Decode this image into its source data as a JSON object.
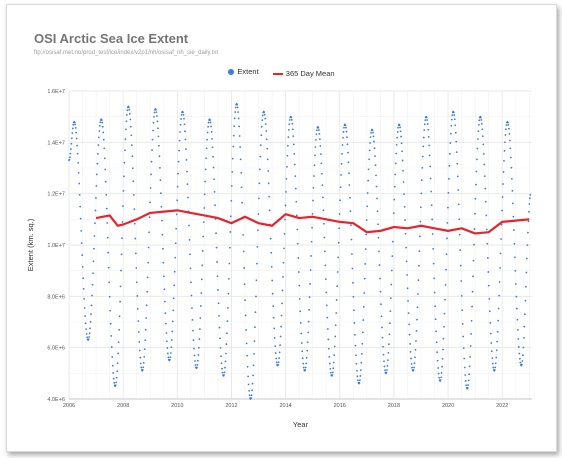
{
  "chart_data": {
    "type": "line",
    "title": "OSI Arctic Sea Ice Extent",
    "subtitle": "ftp://osisaf.met.no/prod_test/ice/index/v2p1/nh/osisaf_nh_sie_daily.txt",
    "xlabel": "Year",
    "ylabel": "Extent (km. sq.)",
    "xlim": [
      2006,
      2023.1
    ],
    "ylim": [
      4000000,
      16000000
    ],
    "x_ticks": [
      "2006",
      "2008",
      "2010",
      "2012",
      "2014",
      "2016",
      "2018",
      "2020",
      "2022"
    ],
    "y_ticks": [
      "4.0E+6",
      "6.0E+6",
      "8.0E+6",
      "1.0E+7",
      "1.2E+7",
      "1.4E+7",
      "1.6E+7"
    ],
    "grid": true,
    "legend_position": "top",
    "series": [
      {
        "name": "Extent",
        "style": "dots",
        "color": "#3b7ddd",
        "years": [
          2006,
          2007,
          2008,
          2009,
          2010,
          2011,
          2012,
          2013,
          2014,
          2015,
          2016,
          2017,
          2018,
          2019,
          2020,
          2021,
          2022
        ],
        "annual_max": [
          14800000,
          14900000,
          15400000,
          15300000,
          15200000,
          14900000,
          15500000,
          15200000,
          15000000,
          14600000,
          14700000,
          14500000,
          14700000,
          15000000,
          15200000,
          15000000,
          14800000
        ],
        "annual_min": [
          6300000,
          4500000,
          5100000,
          5500000,
          5200000,
          4900000,
          4000000,
          5300000,
          5100000,
          4900000,
          4600000,
          5000000,
          5100000,
          4700000,
          4400000,
          5100000,
          5300000
        ]
      },
      {
        "name": "365 Day Mean",
        "style": "line",
        "color": "#e8232b",
        "x": [
          2007.0,
          2007.5,
          2007.8,
          2008.0,
          2008.5,
          2009.0,
          2009.5,
          2010.0,
          2010.5,
          2011.0,
          2011.5,
          2012.0,
          2012.5,
          2013.0,
          2013.5,
          2014.0,
          2014.5,
          2015.0,
          2015.5,
          2016.0,
          2016.5,
          2017.0,
          2017.5,
          2018.0,
          2018.5,
          2019.0,
          2019.5,
          2020.0,
          2020.5,
          2021.0,
          2021.5,
          2022.0,
          2022.5,
          2023.0
        ],
        "y": [
          11050000,
          11150000,
          10750000,
          10800000,
          11000000,
          11250000,
          11300000,
          11350000,
          11250000,
          11150000,
          11050000,
          10850000,
          11100000,
          10850000,
          10750000,
          11200000,
          11050000,
          11100000,
          11000000,
          10900000,
          10850000,
          10500000,
          10550000,
          10700000,
          10650000,
          10750000,
          10650000,
          10550000,
          10650000,
          10450000,
          10500000,
          10900000,
          10950000,
          11000000
        ]
      }
    ]
  },
  "colors": {
    "extent": "#3b7ddd",
    "mean": "#e8232b",
    "grid": "#e6e6e6"
  }
}
